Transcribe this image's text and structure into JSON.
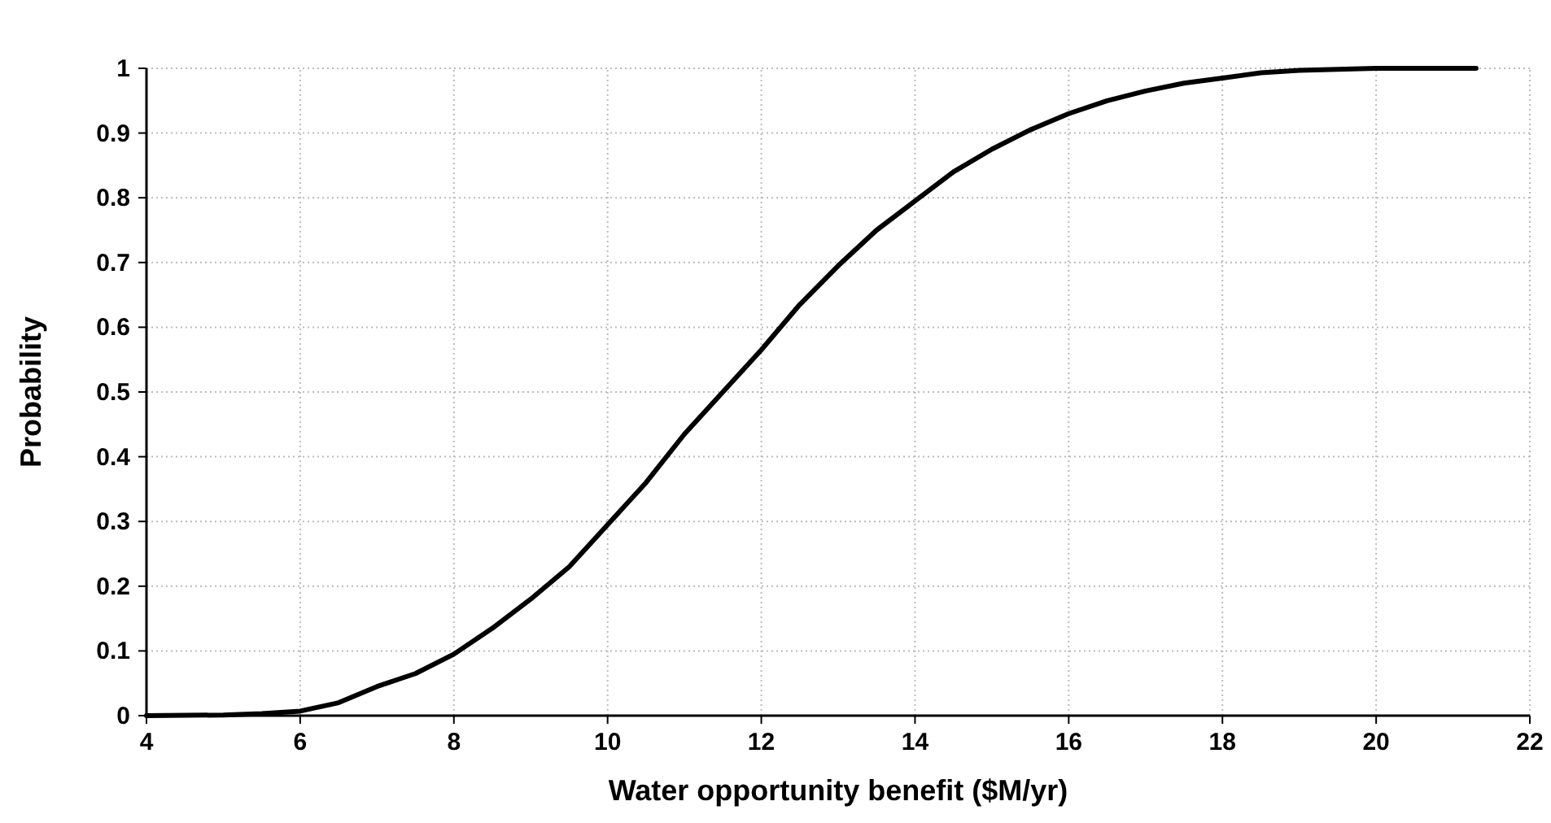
{
  "chart_data": {
    "type": "line",
    "xlabel": "Water opportunity benefit ($M/yr)",
    "ylabel": "Probability",
    "x": [
      4,
      5,
      5.5,
      6,
      6.5,
      7,
      7.5,
      8,
      8.5,
      9,
      9.5,
      10,
      10.5,
      11,
      11.5,
      12,
      12.5,
      13,
      13.5,
      14,
      14.5,
      15,
      15.5,
      16,
      16.5,
      17,
      17.5,
      18,
      18.5,
      19,
      20,
      21.3
    ],
    "series": [
      {
        "color": "#000000",
        "values": [
          0,
          0.001,
          0.003,
          0.007,
          0.02,
          0.045,
          0.065,
          0.095,
          0.135,
          0.18,
          0.23,
          0.295,
          0.36,
          0.435,
          0.5,
          0.565,
          0.635,
          0.695,
          0.75,
          0.795,
          0.84,
          0.875,
          0.905,
          0.93,
          0.95,
          0.965,
          0.977,
          0.985,
          0.993,
          0.997,
          1,
          1
        ]
      }
    ],
    "xlim": [
      4,
      22
    ],
    "xticks": [
      4,
      6,
      8,
      10,
      12,
      14,
      16,
      18,
      20,
      22
    ],
    "ylim": [
      0,
      1
    ],
    "yticks": [
      0,
      0.1,
      0.2,
      0.3,
      0.4,
      0.5,
      0.6,
      0.7,
      0.8,
      0.9,
      1
    ],
    "grid": true
  }
}
